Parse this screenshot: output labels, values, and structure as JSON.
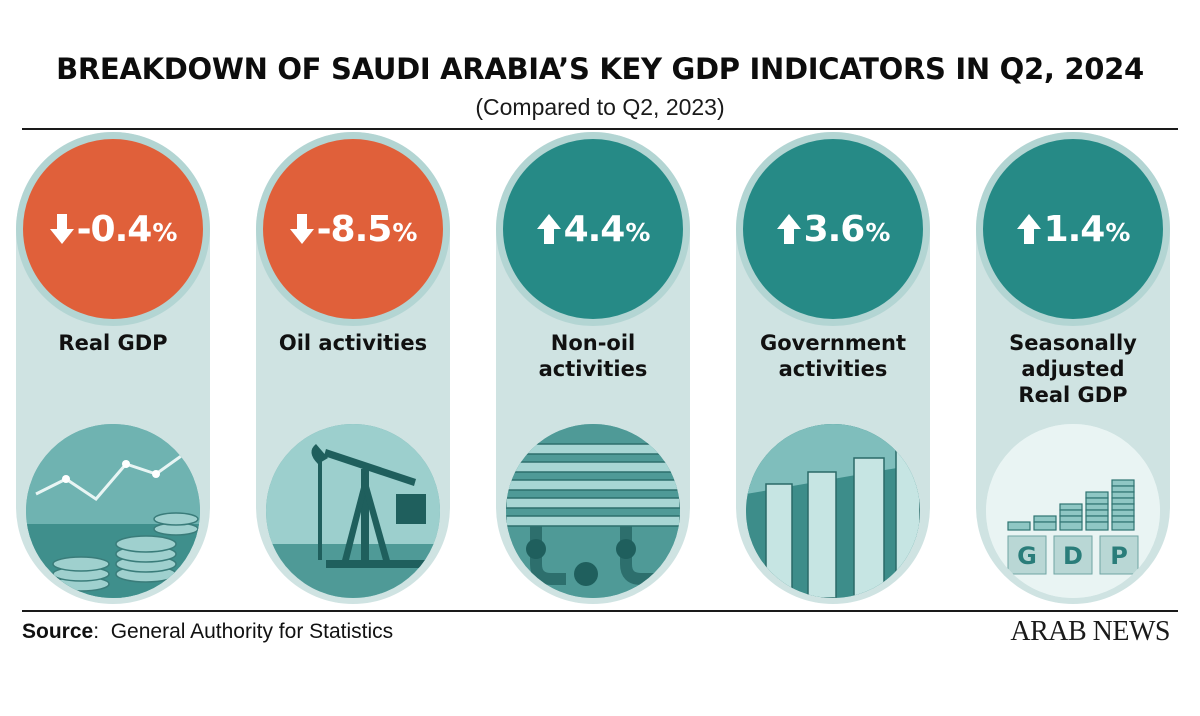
{
  "header": {
    "title": "BREAKDOWN OF SAUDI ARABIA’S KEY GDP INDICATORS IN Q2, 2024",
    "subtitle": "(Compared to Q2, 2023)"
  },
  "indicators": [
    {
      "value": "-0.4",
      "unit": "%",
      "direction": "down",
      "label": "Real GDP",
      "image": "coins-chart-image"
    },
    {
      "value": "-8.5",
      "unit": "%",
      "direction": "down",
      "label": "Oil activities",
      "image": "oil-pump-image"
    },
    {
      "value": "4.4",
      "unit": "%",
      "direction": "up",
      "label": "Non-oil activities",
      "image": "pipes-image"
    },
    {
      "value": "3.6",
      "unit": "%",
      "direction": "up",
      "label": "Government activities",
      "image": "columns-image"
    },
    {
      "value": "1.4",
      "unit": "%",
      "direction": "up",
      "label": "Seasonally adjusted Real GDP",
      "image": "gdp-blocks-image"
    }
  ],
  "gdp_blocks": [
    "G",
    "D",
    "P"
  ],
  "footer": {
    "source_label": "Source",
    "source_text": ":  General Authority for Statistics",
    "brand": "ARAB NEWS"
  },
  "colors": {
    "down": "#e0603a",
    "up": "#268a86",
    "panel": "#cfe3e2",
    "ring": "#b3d5d3"
  }
}
